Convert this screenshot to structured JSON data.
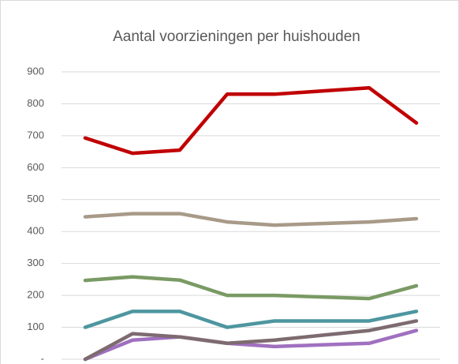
{
  "chart_data": {
    "type": "line",
    "title": "Aantal voorzieningen per huishouden",
    "categories": [
      null,
      null,
      null,
      null,
      null,
      null,
      null,
      null
    ],
    "series": [
      {
        "color": "#c00000",
        "values": [
          693,
          645,
          655,
          830,
          830,
          840,
          850,
          740
        ]
      },
      {
        "color": "#a89a88",
        "values": [
          446,
          456,
          456,
          430,
          420,
          425,
          430,
          440
        ]
      },
      {
        "color": "#7a9a64",
        "values": [
          247,
          258,
          248,
          200,
          200,
          195,
          190,
          230
        ]
      },
      {
        "color": "#4e96a0",
        "values": [
          100,
          150,
          150,
          100,
          120,
          120,
          120,
          150
        ]
      },
      {
        "color": "#a070c0",
        "values": [
          0,
          60,
          70,
          50,
          40,
          45,
          50,
          90
        ]
      },
      {
        "color": "#7d6b70",
        "values": [
          0,
          80,
          70,
          50,
          60,
          75,
          90,
          120
        ]
      }
    ],
    "ylim": [
      0,
      900
    ],
    "yticks": [
      {
        "value": 0,
        "label": "-"
      },
      100,
      200,
      300,
      400,
      500,
      600,
      700,
      800,
      900
    ],
    "grid": true
  }
}
